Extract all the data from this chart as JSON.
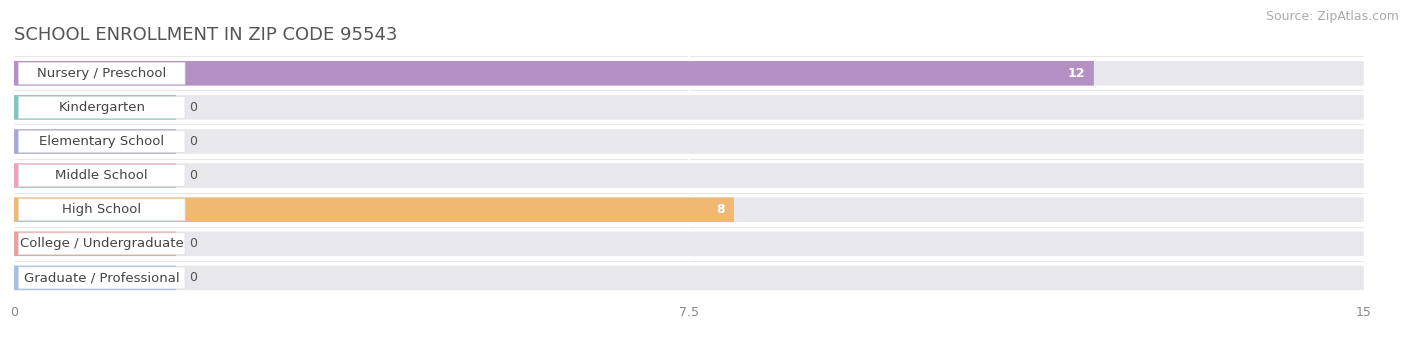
{
  "title": "SCHOOL ENROLLMENT IN ZIP CODE 95543",
  "source": "Source: ZipAtlas.com",
  "categories": [
    "Nursery / Preschool",
    "Kindergarten",
    "Elementary School",
    "Middle School",
    "High School",
    "College / Undergraduate",
    "Graduate / Professional"
  ],
  "values": [
    12,
    0,
    0,
    0,
    8,
    0,
    0
  ],
  "bar_colors": [
    "#b590c4",
    "#7ec8c4",
    "#a8a8dc",
    "#f0a0b8",
    "#f0b870",
    "#e8a0a0",
    "#a8c0e0"
  ],
  "xlim": [
    0,
    15
  ],
  "xticks": [
    0,
    7.5,
    15
  ],
  "background_color": "#f7f7f7",
  "bar_bg_color": "#e8e8ec",
  "bar_row_bg": "#f0f0f4",
  "title_fontsize": 13,
  "source_fontsize": 9,
  "label_fontsize": 9.5,
  "value_fontsize": 9
}
